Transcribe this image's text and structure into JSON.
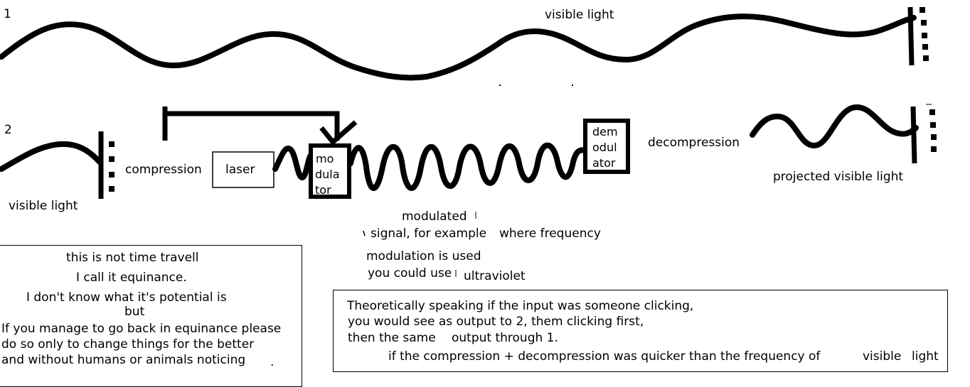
{
  "diagram": {
    "row1": {
      "number": "1",
      "label": "visible light"
    },
    "row2": {
      "number": "2",
      "input_label": "visible light",
      "compression_label": "compression",
      "laser_label": "laser",
      "modulator_lines": [
        "mo",
        "dula",
        "tor"
      ],
      "demodulator_lines": [
        "dem",
        "odul",
        "ator"
      ],
      "decompression_label": "decompression",
      "projected_label": "projected visible light"
    },
    "signal_note": {
      "lines": [
        "modulated",
        "signal, for example",
        "where frequency",
        "modulation is used",
        "you could use",
        "ultraviolet"
      ]
    },
    "left_note": {
      "lines": [
        "this is not time travell",
        "I call it equinance.",
        "I don't know what it's potential is",
        "but",
        "If you manage to go back in equinance please",
        "do so only to change things for the better",
        "and without humans or animals noticing",
        "."
      ]
    },
    "right_note": {
      "lines": [
        "Theoretically speaking if the input was someone clicking,",
        "you would see as output to 2, them clicking first,",
        "then the same",
        "output through 1.",
        "if the compression + decompression was quicker than the frequency of",
        "visible",
        "light"
      ]
    }
  }
}
